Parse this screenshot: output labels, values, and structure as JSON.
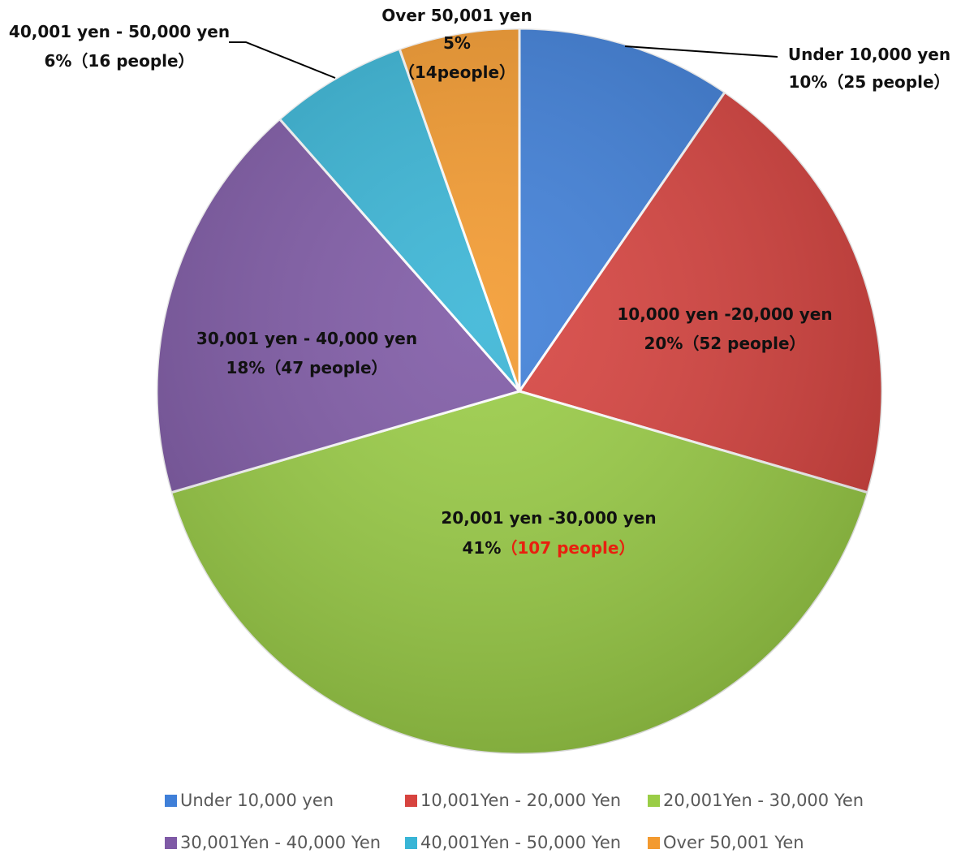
{
  "chart_data": {
    "type": "pie",
    "slices": [
      {
        "legend": "Under 10,000 yen",
        "label": "Under 10,000 yen",
        "percent_label": "10%",
        "people_label": "（25 people）",
        "percent": 10,
        "people": 25,
        "color": "#3f7fd8"
      },
      {
        "legend": "10,001Yen - 20,000 Yen",
        "label": "10,000 yen -20,000 yen",
        "percent_label": "20%",
        "people_label": "（52 people）",
        "percent": 20,
        "people": 52,
        "color": "#d7433f"
      },
      {
        "legend": "20,001Yen - 30,000 Yen",
        "label": "20,001 yen -30,000 yen",
        "percent_label": "41%",
        "people_label": "（107 people）",
        "percent": 41,
        "people": 107,
        "color": "#9acd46"
      },
      {
        "legend": "30,001Yen - 40,000 Yen",
        "label": "30,001 yen - 40,000 yen",
        "percent_label": "18%",
        "people_label": "（47 people）",
        "percent": 18,
        "people": 47,
        "color": "#7f5aa6"
      },
      {
        "legend": "40,001Yen - 50,000 Yen",
        "label": "40,001 yen - 50,000 yen",
        "percent_label": "6%",
        "people_label": "（16 people）",
        "percent": 6,
        "people": 16,
        "color": "#39b5d6"
      },
      {
        "legend": "Over 50,001 Yen",
        "label": "Over 50,001 yen",
        "percent_label": "5%",
        "people_label": "（14people）",
        "percent": 5,
        "people": 14,
        "color": "#f39a2f"
      }
    ],
    "legend_position": "bottom"
  }
}
